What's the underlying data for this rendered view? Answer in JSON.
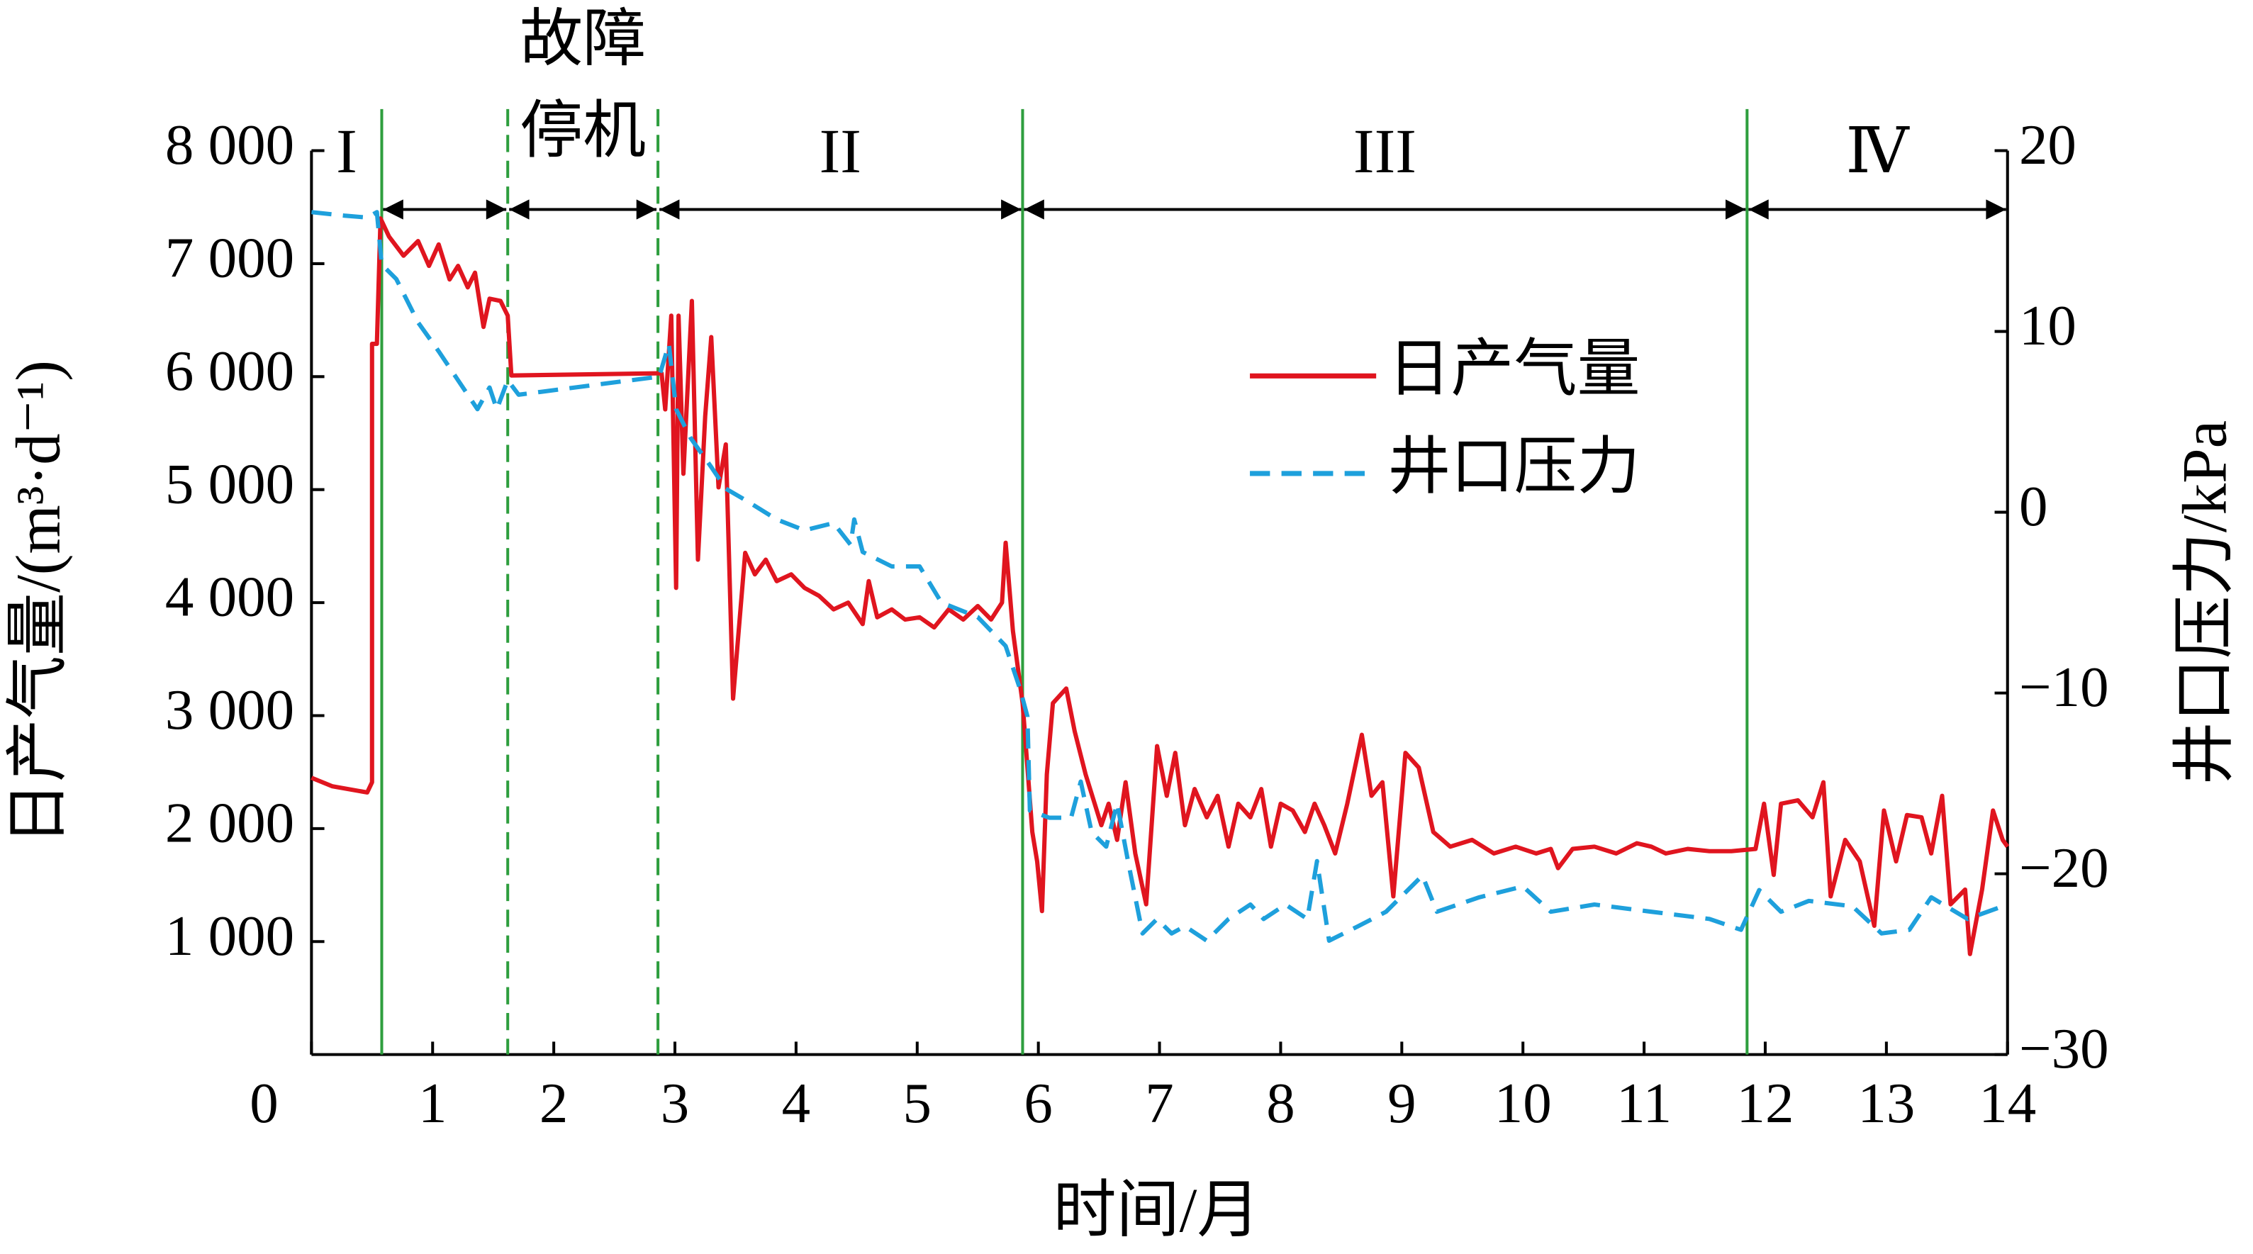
{
  "chart_data": {
    "type": "line",
    "xlabel": "时间/月",
    "ylabel": "日产气量/(m³·d⁻¹)",
    "y2label": "井口压力/kPa",
    "xlim": [
      0,
      14
    ],
    "xticks": [
      0,
      1,
      2,
      3,
      4,
      5,
      6,
      7,
      8,
      9,
      10,
      11,
      12,
      13,
      14
    ],
    "ylim": [
      0,
      8000
    ],
    "yticks": [
      {
        "value": 1000,
        "label": "1 000"
      },
      {
        "value": 2000,
        "label": "2 000"
      },
      {
        "value": 3000,
        "label": "3 000"
      },
      {
        "value": 4000,
        "label": "4 000"
      },
      {
        "value": 5000,
        "label": "5 000"
      },
      {
        "value": 6000,
        "label": "6 000"
      },
      {
        "value": 7000,
        "label": "7 000"
      },
      {
        "value": 8000,
        "label": "8 000"
      }
    ],
    "y2lim": [
      -30,
      20
    ],
    "y2ticks": [
      {
        "value": -30,
        "label": "−30"
      },
      {
        "value": -20,
        "label": "−20"
      },
      {
        "value": -10,
        "label": "−10"
      },
      0,
      10,
      20
    ],
    "legend": "upper right",
    "boundaries": [
      {
        "x": 0.58,
        "style": "solid"
      },
      {
        "x": 1.62,
        "style": "dashed"
      },
      {
        "x": 2.86,
        "style": "dashed"
      },
      {
        "x": 5.87,
        "style": "solid"
      },
      {
        "x": 11.85,
        "style": "solid"
      }
    ],
    "boundary_color": "#2e9e3e",
    "periods": [
      {
        "label": [
          "I"
        ]
      },
      {
        "label": []
      },
      {
        "label": [
          "故障",
          "停机"
        ]
      },
      {
        "label": [
          "II"
        ]
      },
      {
        "label": [
          "III"
        ]
      },
      {
        "label": [
          "Ⅳ"
        ]
      }
    ],
    "series": [
      {
        "name": "日产气量",
        "color": "#e0151f",
        "style": "solid",
        "x": [
          0,
          0.17,
          0.46,
          0.5,
          0.5,
          0.54,
          0.57,
          0.64,
          0.76,
          0.88,
          0.97,
          1.05,
          1.14,
          1.21,
          1.29,
          1.35,
          1.42,
          1.47,
          1.56,
          1.62,
          1.65,
          2.89,
          2.92,
          2.97,
          3.01,
          3.03,
          3.07,
          3.14,
          3.19,
          3.25,
          3.3,
          3.36,
          3.42,
          3.48,
          3.58,
          3.66,
          3.75,
          3.84,
          3.96,
          4.07,
          4.19,
          4.31,
          4.43,
          4.55,
          4.6,
          4.67,
          4.79,
          4.9,
          5.02,
          5.14,
          5.26,
          5.38,
          5.5,
          5.61,
          5.7,
          5.73,
          5.79,
          5.87,
          5.95,
          5.99,
          6.03,
          6.07,
          6.12,
          6.23,
          6.3,
          6.39,
          6.52,
          6.58,
          6.65,
          6.72,
          6.8,
          6.89,
          6.98,
          7.06,
          7.13,
          7.21,
          7.29,
          7.39,
          7.48,
          7.57,
          7.65,
          7.75,
          7.84,
          7.92,
          8.0,
          8.1,
          8.2,
          8.28,
          8.36,
          8.45,
          8.55,
          8.67,
          8.75,
          8.84,
          8.93,
          9.03,
          9.14,
          9.26,
          9.4,
          9.58,
          9.76,
          9.94,
          10.11,
          10.23,
          10.29,
          10.41,
          10.59,
          10.77,
          10.94,
          11.06,
          11.18,
          11.36,
          11.54,
          11.72,
          11.92,
          11.99,
          12.07,
          12.13,
          12.27,
          12.39,
          12.48,
          12.54,
          12.66,
          12.78,
          12.9,
          12.98,
          13.08,
          13.17,
          13.29,
          13.37,
          13.46,
          13.53,
          13.65,
          13.69,
          13.79,
          13.88,
          13.96,
          14
        ],
        "values": [
          2450,
          2375,
          2320,
          2410,
          6290,
          6290,
          7400,
          7240,
          7070,
          7200,
          6980,
          7170,
          6860,
          6980,
          6790,
          6920,
          6440,
          6690,
          6670,
          6540,
          6010,
          6030,
          5710,
          6540,
          4130,
          6540,
          5140,
          6670,
          4380,
          5650,
          6350,
          5020,
          5400,
          3150,
          4440,
          4250,
          4380,
          4190,
          4250,
          4130,
          4060,
          3940,
          4000,
          3810,
          4190,
          3870,
          3940,
          3850,
          3870,
          3780,
          3940,
          3850,
          3970,
          3850,
          4000,
          4530,
          3750,
          3110,
          1970,
          1710,
          1270,
          2480,
          3110,
          3240,
          2860,
          2480,
          2030,
          2220,
          1900,
          2410,
          1780,
          1330,
          2730,
          2290,
          2670,
          2030,
          2350,
          2100,
          2290,
          1840,
          2220,
          2100,
          2350,
          1840,
          2220,
          2160,
          1970,
          2220,
          2030,
          1780,
          2220,
          2830,
          2290,
          2410,
          1400,
          2670,
          2540,
          1970,
          1840,
          1900,
          1780,
          1840,
          1780,
          1820,
          1650,
          1820,
          1840,
          1780,
          1870,
          1840,
          1780,
          1820,
          1800,
          1800,
          1820,
          2220,
          1590,
          2220,
          2250,
          2100,
          2410,
          1400,
          1900,
          1710,
          1140,
          2160,
          1710,
          2120,
          2100,
          1780,
          2290,
          1330,
          1460,
          890,
          1460,
          2160,
          1900,
          1840
        ]
      },
      {
        "name": "井口压力",
        "color": "#1ea0dc",
        "style": "dashed",
        "axis": "y2",
        "x": [
          0,
          0.28,
          0.46,
          0.54,
          0.58,
          0.7,
          0.88,
          1.05,
          1.21,
          1.37,
          1.47,
          1.53,
          1.62,
          1.71,
          2.87,
          2.95,
          3.01,
          3.13,
          3.3,
          3.42,
          3.6,
          3.84,
          4.07,
          4.31,
          4.45,
          4.48,
          4.55,
          4.79,
          5.02,
          5.2,
          5.5,
          5.73,
          5.85,
          5.91,
          5.93,
          6.09,
          6.27,
          6.35,
          6.44,
          6.56,
          6.65,
          6.74,
          6.86,
          6.98,
          7.1,
          7.21,
          7.39,
          7.57,
          7.75,
          7.86,
          8.04,
          8.22,
          8.3,
          8.4,
          8.64,
          8.87,
          9.17,
          9.29,
          9.64,
          10.0,
          10.23,
          10.59,
          11.06,
          11.54,
          11.8,
          11.95,
          12.13,
          12.36,
          12.72,
          12.96,
          13.19,
          13.37,
          13.67,
          14
        ],
        "values": [
          16.6,
          16.4,
          16.3,
          16.6,
          13.7,
          12.9,
          10.5,
          8.9,
          7.3,
          5.7,
          6.9,
          5.7,
          7.3,
          6.5,
          7.5,
          9.3,
          5.7,
          4.1,
          2.5,
          1.3,
          0.6,
          -0.4,
          -1.0,
          -0.6,
          -1.8,
          -0.4,
          -2.2,
          -3.0,
          -3.0,
          -5.0,
          -5.8,
          -7.4,
          -9.8,
          -11.3,
          -16.5,
          -16.9,
          -16.9,
          -14.9,
          -17.7,
          -18.5,
          -16.1,
          -19.3,
          -23.3,
          -22.5,
          -23.3,
          -22.9,
          -23.7,
          -22.5,
          -21.7,
          -22.5,
          -21.7,
          -22.5,
          -19.3,
          -23.7,
          -22.9,
          -22.1,
          -20.1,
          -22.1,
          -21.3,
          -20.7,
          -22.1,
          -21.7,
          -22.1,
          -22.5,
          -23.1,
          -20.9,
          -22.1,
          -21.5,
          -21.8,
          -23.3,
          -23.1,
          -21.3,
          -22.5,
          -21.7
        ]
      }
    ]
  }
}
